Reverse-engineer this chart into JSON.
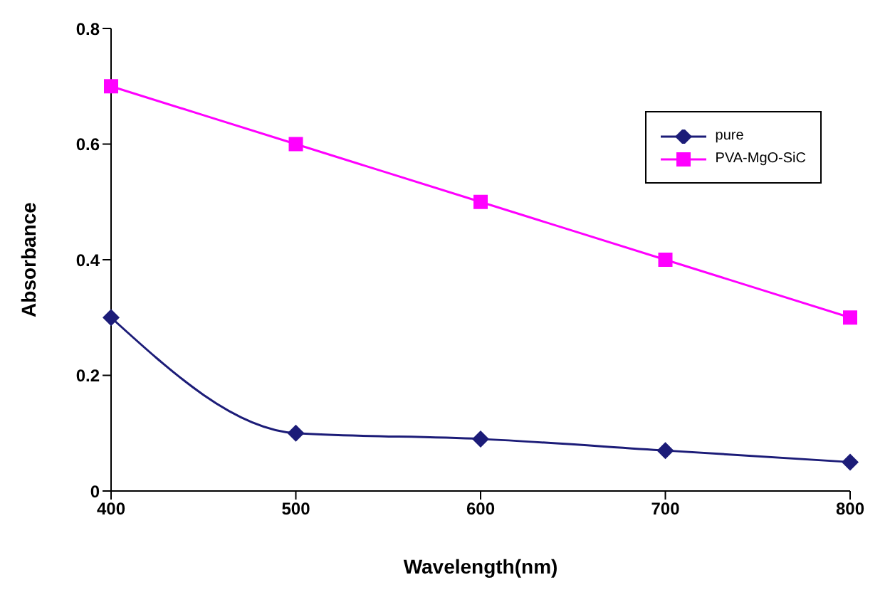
{
  "chart_data": {
    "type": "line",
    "xlabel": "Wavelength(nm)",
    "ylabel": "Absorbance",
    "x": [
      400,
      500,
      600,
      700,
      800
    ],
    "series": [
      {
        "name": "pure",
        "color": "#1c1c78",
        "values": [
          0.3,
          0.1,
          0.09,
          0.07,
          0.05
        ],
        "marker": "diamond"
      },
      {
        "name": "PVA-MgO-SiC",
        "color": "#ff00ff",
        "values": [
          0.7,
          0.6,
          0.5,
          0.4,
          0.3
        ],
        "marker": "square"
      }
    ],
    "xlim": [
      400,
      800
    ],
    "xticks": [
      400,
      500,
      600,
      700,
      800
    ],
    "ylim": [
      0,
      0.8
    ],
    "yticks": [
      0,
      0.2,
      0.4,
      0.6,
      0.8
    ],
    "grid": false,
    "legend": "top right",
    "line_style": "solid"
  }
}
